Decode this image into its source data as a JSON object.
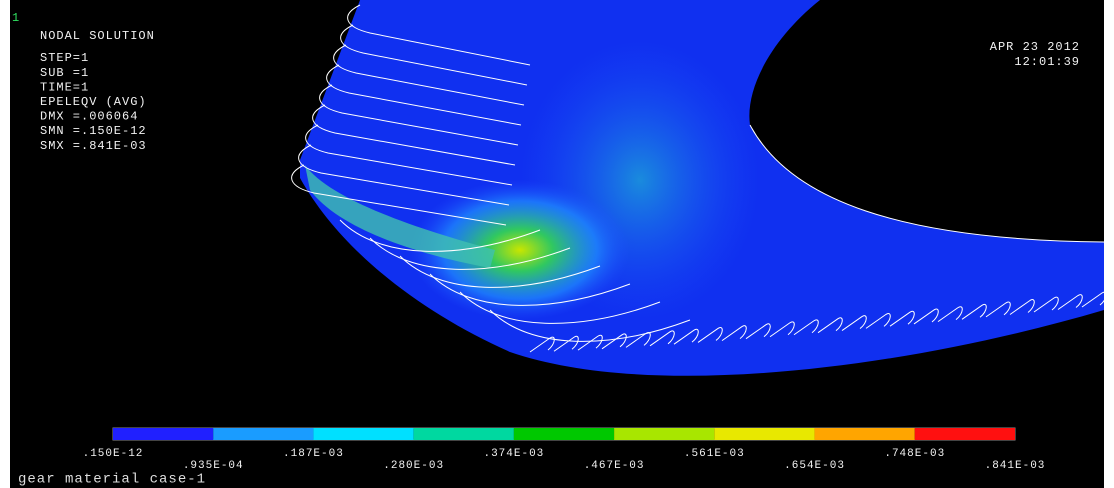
{
  "header": {
    "window_number": "1",
    "title": "NODAL SOLUTION",
    "lines": [
      "STEP=1",
      "SUB =1",
      "TIME=1",
      "EPELEQV   (AVG)",
      "DMX =.006064",
      "SMN =.150E-12",
      "SMX =.841E-03"
    ]
  },
  "timestamp": {
    "date": "APR 23 2012",
    "time": "12:01:39"
  },
  "legend": {
    "colors": [
      "#2020ff",
      "#1a9cff",
      "#00e0ff",
      "#00d8a0",
      "#00c800",
      "#a8e600",
      "#e8e800",
      "#ffa500",
      "#ff1010"
    ],
    "labels": [
      ".150E-12",
      ".935E-04",
      ".187E-03",
      ".280E-03",
      ".374E-03",
      ".467E-03",
      ".561E-03",
      ".654E-03",
      ".748E-03",
      ".841E-03"
    ]
  },
  "caption": "gear material case-1"
}
